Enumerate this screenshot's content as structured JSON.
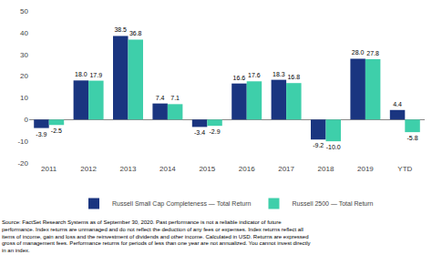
{
  "chart_data": {
    "type": "bar",
    "categories": [
      "2011",
      "2012",
      "2013",
      "2014",
      "2015",
      "2016",
      "2017",
      "2018",
      "2019",
      "YTD"
    ],
    "series": [
      {
        "name": "Russell Small Cap Completeness — Total Return",
        "color": "#1a3580",
        "values": [
          -3.9,
          18.0,
          38.5,
          7.4,
          -3.4,
          16.6,
          18.3,
          -9.2,
          28.0,
          4.4
        ],
        "value_labels": [
          "-3.9",
          "18.0",
          "38.5",
          "7.4",
          "-3.4",
          "16.6",
          "18.3",
          "-9.2",
          "28.0",
          "4.4"
        ]
      },
      {
        "name": "Russell 2500 — Total Return",
        "color": "#3ecfaa",
        "values": [
          -2.5,
          17.9,
          36.8,
          7.1,
          -2.9,
          17.6,
          16.8,
          -10.0,
          27.8,
          -5.8
        ],
        "value_labels": [
          "-2.5",
          "17.9",
          "36.8",
          "7.1",
          "-2.9",
          "17.6",
          "16.8",
          "-10.0",
          "27.8",
          "-5.8"
        ]
      }
    ],
    "ylim": [
      -20,
      50
    ],
    "yticks": [
      -20,
      -10,
      0,
      10,
      20,
      30,
      40,
      50
    ],
    "grid": false,
    "legend": "bottom",
    "data_labels": true,
    "annotations": [
      "Source: FactSet Research Systems as of September 30, 2020. Past performance is not a reliable indicator of future\nperformance. Index returns are unmanaged and do not reflect the deduction of any fees or expenses. Index returns reflect all\nitems of income, gain and loss and the reinvestment of dividends and other income. Calculated in USD. Returns are expressed\ngross of management fees. Performance returns for periods of less than one year are not annualized. You cannot invest directly\nin an index."
    ]
  }
}
